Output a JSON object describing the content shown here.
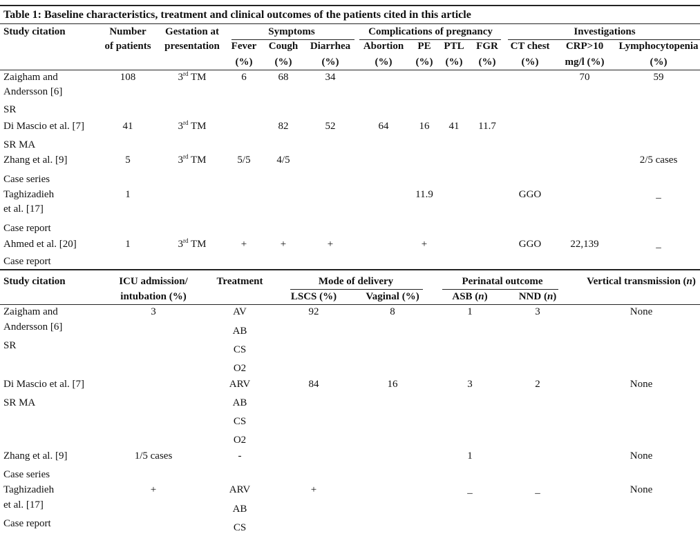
{
  "title": "Table 1: Baseline characteristics, treatment and clinical outcomes of the patients cited in this article",
  "table1": {
    "group_headers": [
      "Symptoms",
      "Complications of pregnancy",
      "Investigations"
    ],
    "columns": [
      [
        "Study citation"
      ],
      [
        "Number",
        "of patients"
      ],
      [
        "Gestation at",
        "presentation"
      ],
      [
        "Fever",
        "(%)"
      ],
      [
        "Cough",
        "(%)"
      ],
      [
        "Diarrhea",
        "(%)"
      ],
      [
        "Abortion",
        "(%)"
      ],
      [
        "PE",
        "(%)"
      ],
      [
        "PTL",
        "(%)"
      ],
      [
        "FGR",
        "(%)"
      ],
      [
        "CT chest",
        "(%)"
      ],
      [
        "CRP>10",
        "mg/l (%)"
      ],
      [
        "Lymphocytopenia",
        "(%)"
      ]
    ],
    "rows": [
      {
        "citation": [
          "Zaigham and",
          "Andersson [6]",
          "SR"
        ],
        "cells": [
          "108",
          "3rd TM",
          "6",
          "68",
          "34",
          null,
          null,
          null,
          null,
          null,
          "70",
          "59"
        ]
      },
      {
        "citation": [
          "Di Mascio et al. [7]",
          "SR MA"
        ],
        "cells": [
          "41",
          "3rd TM",
          null,
          "82",
          "52",
          "64",
          "16",
          "41",
          "11.7",
          null,
          null,
          null
        ]
      },
      {
        "citation": [
          "Zhang et al. [9]",
          "Case series"
        ],
        "cells": [
          "5",
          "3rd TM",
          "5/5",
          "4/5",
          null,
          null,
          null,
          null,
          null,
          null,
          null,
          "2/5 cases"
        ]
      },
      {
        "citation": [
          "Taghizadieh",
          "et al. [17]",
          "Case report"
        ],
        "cells": [
          "1",
          null,
          null,
          null,
          null,
          null,
          "11.9",
          null,
          null,
          "GGO",
          null,
          "_"
        ]
      },
      {
        "citation": [
          "Ahmed et al. [20]",
          "Case report"
        ],
        "cells": [
          "1",
          "3rd TM",
          "+",
          "+",
          "+",
          null,
          "+",
          null,
          null,
          "GGO",
          "22,139",
          "_"
        ]
      }
    ]
  },
  "table2": {
    "group_headers": [
      "Mode of delivery",
      "Perinatal outcome"
    ],
    "columns": [
      [
        "Study citation"
      ],
      [
        "ICU admission/",
        "intubation (%)"
      ],
      [
        "Treatment"
      ],
      [
        "LSCS (%)"
      ],
      [
        "Vaginal (%)"
      ],
      [
        "ASB (n)"
      ],
      [
        "NND (n)"
      ],
      [
        "Vertical transmission (n)"
      ]
    ],
    "rows": [
      {
        "citation": [
          "Zaigham and",
          "Andersson [6]",
          "SR"
        ],
        "icu": "3",
        "treatment": [
          "AV",
          "AB",
          "CS",
          "O2"
        ],
        "cells": [
          "92",
          "8",
          "1",
          "3",
          "None"
        ]
      },
      {
        "citation": [
          "Di Mascio et al. [7]",
          "SR MA"
        ],
        "icu": null,
        "treatment": [
          "ARV",
          "AB",
          "CS",
          "O2"
        ],
        "cells": [
          "84",
          "16",
          "3",
          "2",
          "None"
        ]
      },
      {
        "citation": [
          "Zhang et al. [9]",
          "Case series"
        ],
        "icu": "1/5 cases",
        "treatment": [
          "-"
        ],
        "cells": [
          null,
          null,
          "1",
          null,
          "None"
        ]
      },
      {
        "citation": [
          "Taghizadieh",
          "et al. [17]",
          "Case report"
        ],
        "icu": "+",
        "treatment": [
          "ARV",
          "AB",
          "CS"
        ],
        "cells": [
          "+",
          null,
          "_",
          "_",
          "None"
        ]
      }
    ]
  }
}
